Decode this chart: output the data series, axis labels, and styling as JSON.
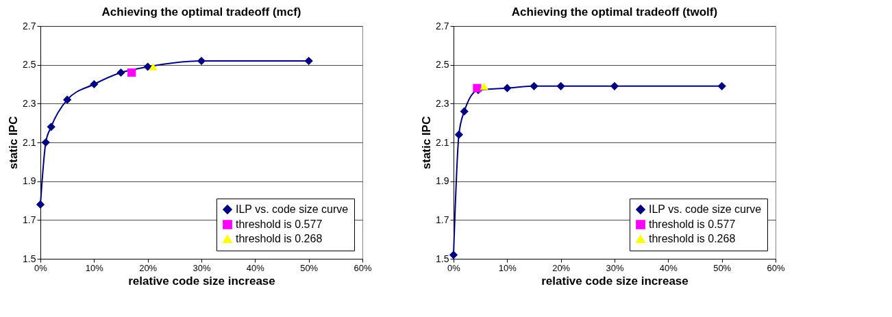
{
  "chart_data": [
    {
      "type": "line",
      "title": "Achieving the optimal tradeoff (mcf)",
      "xlabel": "relative code size increase",
      "ylabel": "static IPC",
      "xlim": [
        0,
        60
      ],
      "xticks": [
        {
          "value": 0,
          "label": "0%"
        },
        {
          "value": 10,
          "label": "10%"
        },
        {
          "value": 20,
          "label": "20%"
        },
        {
          "value": 30,
          "label": "30%"
        },
        {
          "value": 40,
          "label": "40%"
        },
        {
          "value": 50,
          "label": "50%"
        },
        {
          "value": 60,
          "label": "60%"
        }
      ],
      "ylim": [
        1.5,
        2.7
      ],
      "yticks": [
        1.5,
        1.7,
        1.9,
        2.1,
        2.3,
        2.5,
        2.7
      ],
      "grid": "y",
      "legend": "bottom right",
      "series": [
        {
          "name": "ILP vs. code size curve",
          "type": "line",
          "marker": "diamond",
          "color": "#000080",
          "x": [
            0,
            1,
            2,
            5,
            10,
            15,
            20,
            30,
            50
          ],
          "values": [
            1.78,
            2.1,
            2.18,
            2.32,
            2.4,
            2.46,
            2.49,
            2.52,
            2.52
          ]
        },
        {
          "name": "threshold is 0.577",
          "type": "scatter",
          "marker": "square",
          "color": "#ff00ff",
          "x": [
            17
          ],
          "values": [
            2.46
          ]
        },
        {
          "name": "threshold is 0.268",
          "type": "scatter",
          "marker": "triangle",
          "color": "#ffff00",
          "x": [
            21
          ],
          "values": [
            2.49
          ]
        }
      ]
    },
    {
      "type": "line",
      "title": "Achieving the optimal tradeoff (twolf)",
      "xlabel": "relative code size increase",
      "ylabel": "static IPC",
      "xlim": [
        0,
        60
      ],
      "xticks": [
        {
          "value": 0,
          "label": "0%"
        },
        {
          "value": 10,
          "label": "10%"
        },
        {
          "value": 20,
          "label": "20%"
        },
        {
          "value": 30,
          "label": "30%"
        },
        {
          "value": 40,
          "label": "40%"
        },
        {
          "value": 50,
          "label": "50%"
        },
        {
          "value": 60,
          "label": "60%"
        }
      ],
      "ylim": [
        1.5,
        2.7
      ],
      "yticks": [
        1.5,
        1.7,
        1.9,
        2.1,
        2.3,
        2.5,
        2.7
      ],
      "grid": "y",
      "legend": "bottom right",
      "series": [
        {
          "name": "ILP vs. code size curve",
          "type": "line",
          "marker": "diamond",
          "color": "#000080",
          "x": [
            0,
            1,
            2,
            4.6,
            10,
            15,
            20,
            30,
            50
          ],
          "values": [
            1.52,
            2.14,
            2.26,
            2.37,
            2.38,
            2.39,
            2.39,
            2.39,
            2.39
          ]
        },
        {
          "name": "threshold is 0.577",
          "type": "scatter",
          "marker": "square",
          "color": "#ff00ff",
          "x": [
            4.4
          ],
          "values": [
            2.38
          ]
        },
        {
          "name": "threshold is 0.268",
          "type": "scatter",
          "marker": "triangle",
          "color": "#ffff00",
          "x": [
            5.7
          ],
          "values": [
            2.39
          ]
        }
      ]
    }
  ]
}
